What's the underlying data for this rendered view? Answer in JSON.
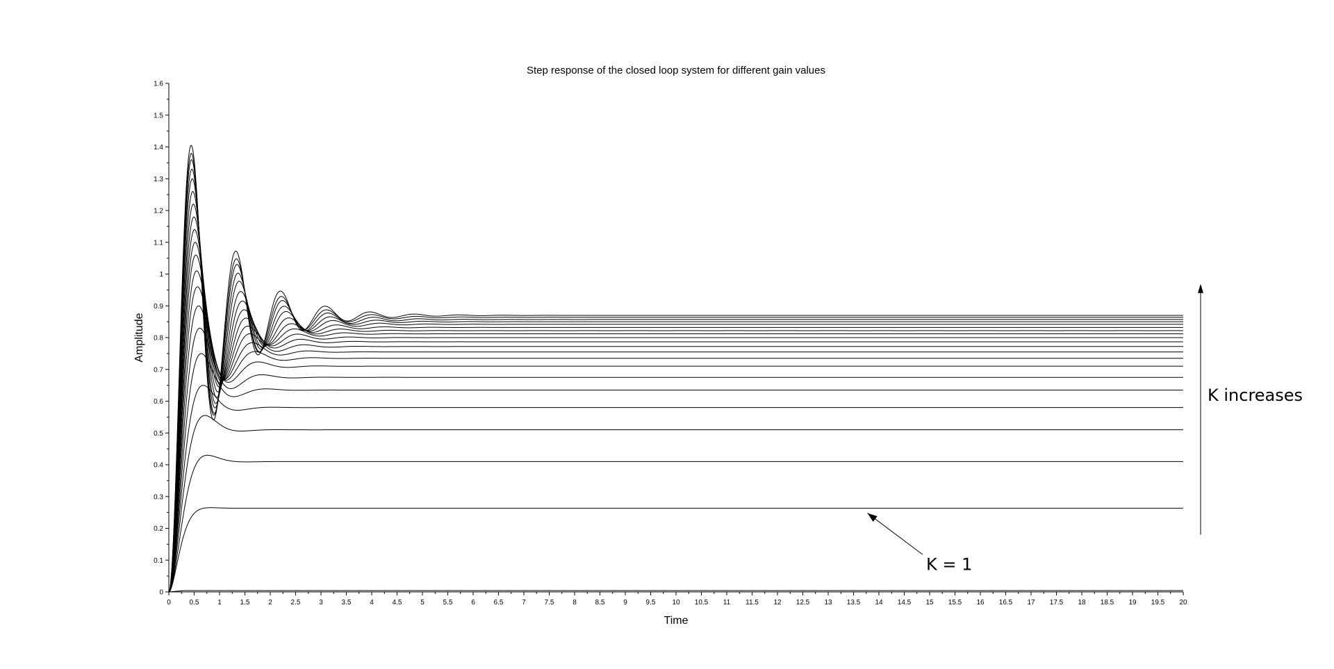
{
  "chart_data": {
    "type": "line",
    "title": "Step response of the closed loop system for different gain values",
    "xlabel": "Time",
    "ylabel": "Amplitude",
    "xlim": [
      0,
      20
    ],
    "ylim": [
      0,
      1.6
    ],
    "x_ticks": [
      "0",
      "0.5",
      "1",
      "1.5",
      "2",
      "2.5",
      "3",
      "3.5",
      "4",
      "4.5",
      "5",
      "5.5",
      "6",
      "6.5",
      "7",
      "7.5",
      "8",
      "8.5",
      "9",
      "9.5",
      "10",
      "10.5",
      "11",
      "11.5",
      "12",
      "12.5",
      "13",
      "13.5",
      "14",
      "14.5",
      "15",
      "15.5",
      "16",
      "16.5",
      "17",
      "17.5",
      "18",
      "18.5",
      "19",
      "19.5",
      "20"
    ],
    "y_ticks": [
      "0",
      "0.1",
      "0.2",
      "0.3",
      "0.4",
      "0.5",
      "0.6",
      "0.7",
      "0.8",
      "0.9",
      "1",
      "1.1",
      "1.2",
      "1.3",
      "1.4",
      "1.5",
      "1.6"
    ],
    "grid": false,
    "legend": "none",
    "series_description": "Family of step responses; final amplitude and peak overshoot increase with K",
    "series": [
      {
        "final": 0.004,
        "peak": 0.004
      },
      {
        "final": 0.263,
        "peak": 0.265
      },
      {
        "final": 0.41,
        "peak": 0.43
      },
      {
        "final": 0.51,
        "peak": 0.555
      },
      {
        "final": 0.58,
        "peak": 0.65
      },
      {
        "final": 0.635,
        "peak": 0.75
      },
      {
        "final": 0.675,
        "peak": 0.83
      },
      {
        "final": 0.71,
        "peak": 0.9
      },
      {
        "final": 0.735,
        "peak": 0.96
      },
      {
        "final": 0.755,
        "peak": 1.01
      },
      {
        "final": 0.772,
        "peak": 1.06
      },
      {
        "final": 0.787,
        "peak": 1.1
      },
      {
        "final": 0.8,
        "peak": 1.14
      },
      {
        "final": 0.812,
        "peak": 1.18
      },
      {
        "final": 0.822,
        "peak": 1.22
      },
      {
        "final": 0.832,
        "peak": 1.26
      },
      {
        "final": 0.842,
        "peak": 1.3
      },
      {
        "final": 0.85,
        "peak": 1.33
      },
      {
        "final": 0.857,
        "peak": 1.36
      },
      {
        "final": 0.864,
        "peak": 1.38
      },
      {
        "final": 0.87,
        "peak": 1.405
      }
    ],
    "annotations": [
      {
        "text": "K = 1",
        "points_to_x": 13.5,
        "points_to_y": 0.263,
        "text_x": 15,
        "text_y": 0.1
      },
      {
        "text": "K increases",
        "arrow_from_y": 0.18,
        "arrow_to_y": 0.96
      }
    ]
  }
}
